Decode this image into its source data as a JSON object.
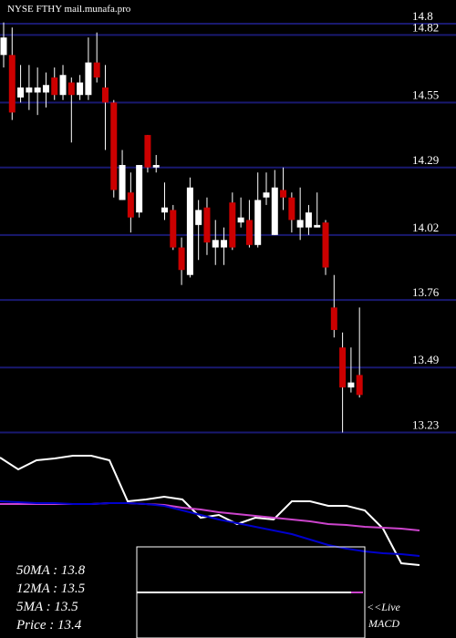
{
  "chart_data": [
    {
      "type": "candlestick",
      "title": "NYSE FTHY mail.munafa.pro",
      "max_label": 14.8,
      "open": [
        14.74,
        14.74,
        14.57,
        14.59,
        14.59,
        14.59,
        14.65,
        14.58,
        14.63,
        14.58,
        14.58,
        14.71,
        14.61,
        14.55,
        14.16,
        14.19,
        14.11,
        14.42,
        14.29,
        14.11,
        14.12,
        13.97,
        13.86,
        14.06,
        14.13,
        13.97,
        13.97,
        14.15,
        14.07,
        14.08,
        13.98,
        14.17,
        14.02,
        14.2,
        14.17,
        14.05,
        14.05,
        14.05,
        14.07,
        13.73,
        13.57,
        13.41,
        13.46
      ],
      "high": [
        14.87,
        14.85,
        14.7,
        14.7,
        14.69,
        14.67,
        14.69,
        14.7,
        14.65,
        14.66,
        14.81,
        14.83,
        14.7,
        14.56,
        14.36,
        14.27,
        14.3,
        14.42,
        14.34,
        14.23,
        14.14,
        14.01,
        14.25,
        14.16,
        14.17,
        14.08,
        14.05,
        14.19,
        14.17,
        14.16,
        14.27,
        14.27,
        14.28,
        14.29,
        14.19,
        14.21,
        14.14,
        14.19,
        14.08,
        13.86,
        13.63,
        13.57,
        13.73
      ],
      "low": [
        14.69,
        14.48,
        14.55,
        14.52,
        14.5,
        14.53,
        14.56,
        14.56,
        14.39,
        14.56,
        14.56,
        14.63,
        14.36,
        14.17,
        14.16,
        14.03,
        14.09,
        14.27,
        14.27,
        14.08,
        13.96,
        13.82,
        13.85,
        13.92,
        13.94,
        13.9,
        13.9,
        13.96,
        14.05,
        13.97,
        13.97,
        14.14,
        14.02,
        14.12,
        14.03,
        14.0,
        14.02,
        14.05,
        13.86,
        13.61,
        13.23,
        13.39,
        13.37
      ],
      "close": [
        14.81,
        14.51,
        14.61,
        14.61,
        14.61,
        14.62,
        14.58,
        14.66,
        14.58,
        14.63,
        14.71,
        14.65,
        14.55,
        14.2,
        14.3,
        14.09,
        14.3,
        14.29,
        14.3,
        14.13,
        13.97,
        13.88,
        14.21,
        14.12,
        13.99,
        14.0,
        14.0,
        13.97,
        14.09,
        13.98,
        14.16,
        14.19,
        14.21,
        14.17,
        14.08,
        14.08,
        14.11,
        14.06,
        13.89,
        13.64,
        13.41,
        13.43,
        13.38
      ],
      "up_color": "#ffffff",
      "down_color": "#cc0000",
      "grid_color": "#191970",
      "ylim": [
        13.21,
        14.96
      ],
      "yticks": [
        14.82,
        14.55,
        14.29,
        14.02,
        13.76,
        13.49,
        13.23
      ],
      "grid": true
    },
    {
      "type": "line",
      "ylim": [
        13,
        15
      ],
      "series": [
        {
          "color": "#ffffff",
          "values": [
            14.88,
            14.75,
            14.85,
            14.87,
            14.9,
            14.9,
            14.85,
            14.4,
            14.42,
            14.45,
            14.42,
            14.22,
            14.25,
            14.15,
            14.22,
            14.2,
            14.4,
            14.4,
            14.35,
            14.35,
            14.3,
            14.1,
            13.72,
            13.7
          ]
        },
        {
          "color": "#cc44cc",
          "values": [
            14.37,
            14.37,
            14.37,
            14.37,
            14.37,
            14.37,
            14.38,
            14.38,
            14.37,
            14.36,
            14.33,
            14.31,
            14.28,
            14.26,
            14.24,
            14.22,
            14.2,
            14.18,
            14.15,
            14.14,
            14.12,
            14.11,
            14.1,
            14.08
          ]
        },
        {
          "color": "#0000cc",
          "values": [
            14.4,
            14.39,
            14.38,
            14.38,
            14.37,
            14.37,
            14.38,
            14.38,
            14.37,
            14.35,
            14.3,
            14.25,
            14.2,
            14.16,
            14.12,
            14.08,
            14.04,
            13.98,
            13.92,
            13.88,
            13.85,
            13.83,
            13.82,
            13.8
          ]
        }
      ],
      "indicators": [
        "50MA : 13.8",
        "12MA : 13.5",
        "5MA : 13.5",
        "Price   : 13.4"
      ],
      "live_label": "<<Live",
      "macd_label": "MACD"
    }
  ]
}
